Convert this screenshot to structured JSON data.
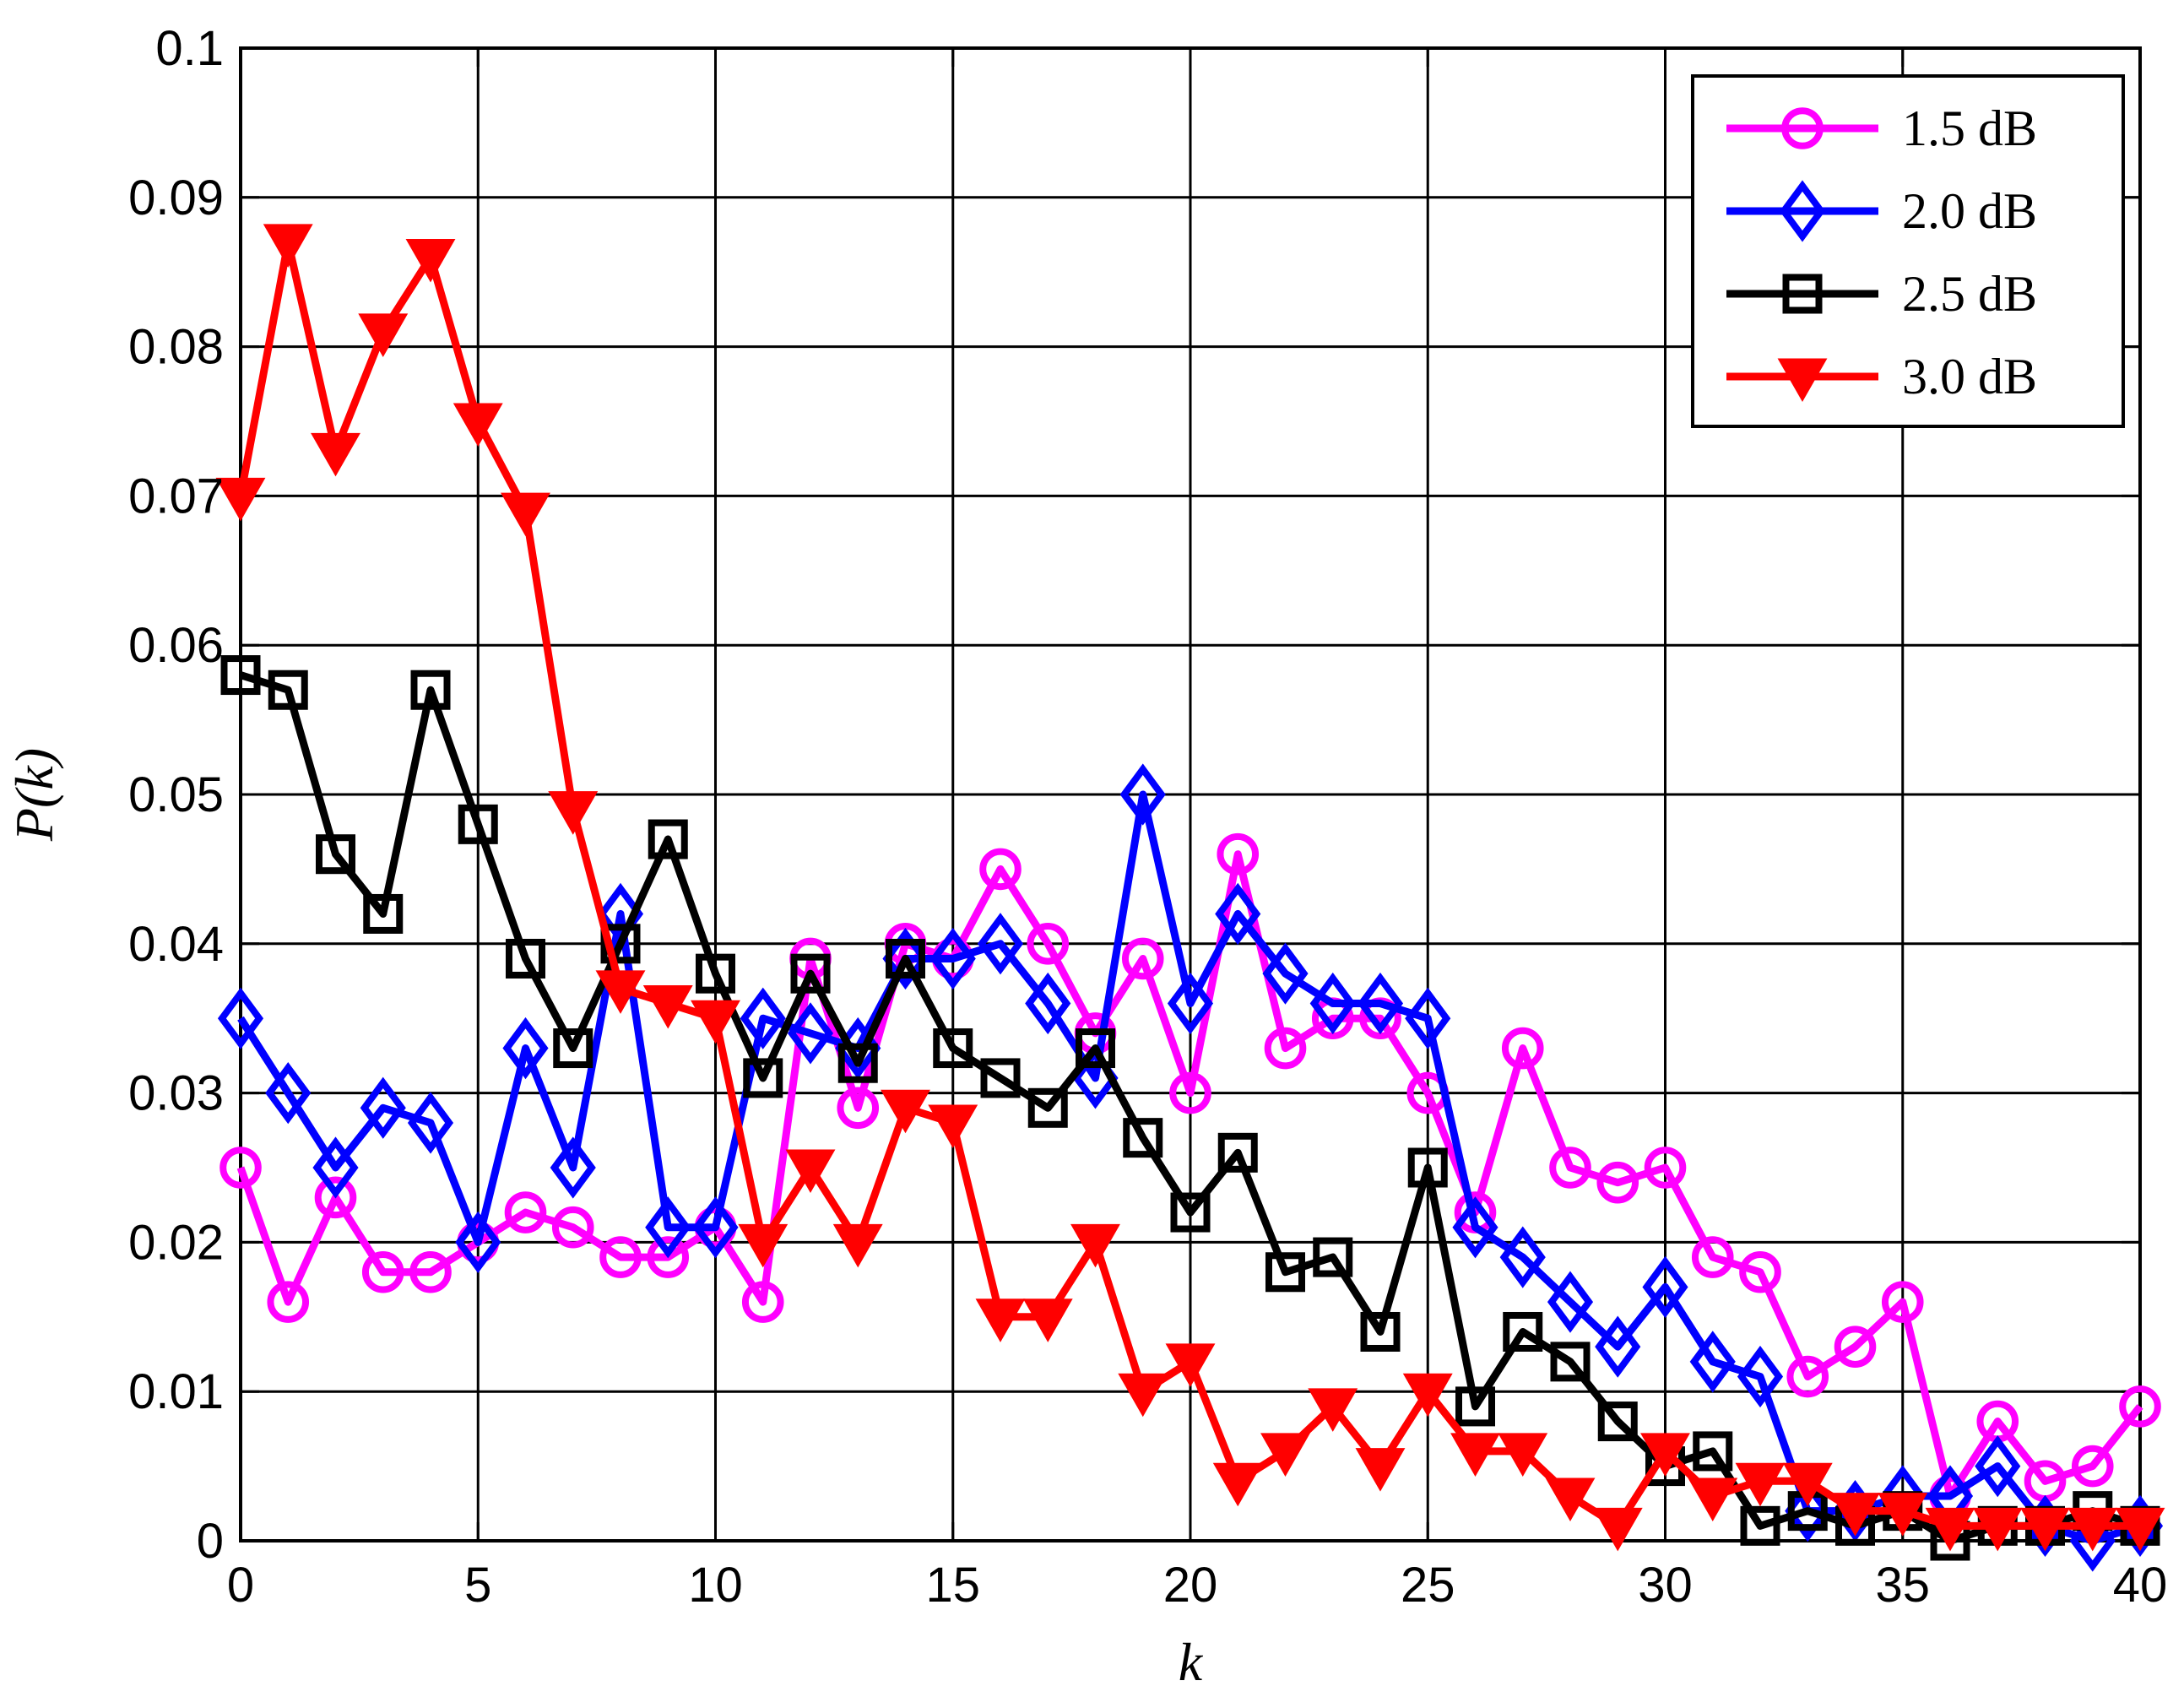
{
  "chart_data": {
    "type": "line",
    "xlabel": "k",
    "ylabel": "P(k)",
    "xlim": [
      0,
      40
    ],
    "ylim": [
      0,
      0.1
    ],
    "x_ticks": [
      0,
      5,
      10,
      15,
      20,
      25,
      30,
      35,
      40
    ],
    "x_tick_labels": [
      "0",
      "5",
      "10",
      "15",
      "20",
      "25",
      "30",
      "35",
      "40"
    ],
    "y_ticks": [
      0,
      0.01,
      0.02,
      0.03,
      0.04,
      0.05,
      0.06,
      0.07,
      0.08,
      0.09,
      0.1
    ],
    "y_tick_labels": [
      "0",
      "0.01",
      "0.02",
      "0.03",
      "0.04",
      "0.05",
      "0.06",
      "0.07",
      "0.08",
      "0.09",
      "0.1"
    ],
    "grid": true,
    "legend_position": "top-right",
    "x": [
      0,
      1,
      2,
      3,
      4,
      5,
      6,
      7,
      8,
      9,
      10,
      11,
      12,
      13,
      14,
      15,
      16,
      17,
      18,
      19,
      20,
      21,
      22,
      23,
      24,
      25,
      26,
      27,
      28,
      29,
      30,
      31,
      32,
      33,
      34,
      35,
      36,
      37,
      38,
      39,
      40
    ],
    "series": [
      {
        "name": "1.5 dB",
        "color": "#ff00ff",
        "marker": "circle",
        "values": [
          0.025,
          0.016,
          0.023,
          0.018,
          0.018,
          0.02,
          0.022,
          0.021,
          0.019,
          0.019,
          0.021,
          0.016,
          0.039,
          0.029,
          0.04,
          0.039,
          0.045,
          0.04,
          0.034,
          0.039,
          0.03,
          0.046,
          0.033,
          0.035,
          0.035,
          0.03,
          0.022,
          0.033,
          0.025,
          0.024,
          0.025,
          0.019,
          0.018,
          0.011,
          0.013,
          0.016,
          0.003,
          0.008,
          0.004,
          0.005,
          0.009
        ]
      },
      {
        "name": "2.0 dB",
        "color": "#0000ff",
        "marker": "diamond",
        "values": [
          0.035,
          0.03,
          0.025,
          0.029,
          0.028,
          0.02,
          0.033,
          0.025,
          0.042,
          0.021,
          0.021,
          0.035,
          0.034,
          0.033,
          0.039,
          0.039,
          0.04,
          0.036,
          0.031,
          0.05,
          0.036,
          0.042,
          0.038,
          0.036,
          0.036,
          0.035,
          0.021,
          0.019,
          0.016,
          0.013,
          0.017,
          0.012,
          0.011,
          0.002,
          0.002,
          0.003,
          0.003,
          0.005,
          0.001,
          0.0,
          0.001
        ]
      },
      {
        "name": "2.5 dB",
        "color": "#000000",
        "marker": "square",
        "values": [
          0.058,
          0.057,
          0.046,
          0.042,
          0.057,
          0.048,
          0.039,
          0.033,
          0.04,
          0.047,
          0.038,
          0.031,
          0.038,
          0.032,
          0.039,
          0.033,
          0.031,
          0.029,
          0.033,
          0.027,
          0.022,
          0.026,
          0.018,
          0.019,
          0.014,
          0.025,
          0.009,
          0.014,
          0.012,
          0.008,
          0.005,
          0.006,
          0.001,
          0.002,
          0.001,
          0.002,
          0.0,
          0.001,
          0.001,
          0.002,
          0.001
        ]
      },
      {
        "name": "3.0 dB",
        "color": "#ff0000",
        "marker": "triangle-down",
        "values": [
          0.07,
          0.087,
          0.073,
          0.081,
          0.086,
          0.075,
          0.069,
          0.049,
          0.037,
          0.036,
          0.035,
          0.02,
          0.025,
          0.02,
          0.029,
          0.028,
          0.015,
          0.015,
          0.02,
          0.01,
          0.012,
          0.004,
          0.006,
          0.009,
          0.005,
          0.01,
          0.006,
          0.006,
          0.003,
          0.001,
          0.006,
          0.003,
          0.004,
          0.004,
          0.002,
          0.002,
          0.001,
          0.001,
          0.001,
          0.001,
          0.001
        ]
      }
    ]
  }
}
